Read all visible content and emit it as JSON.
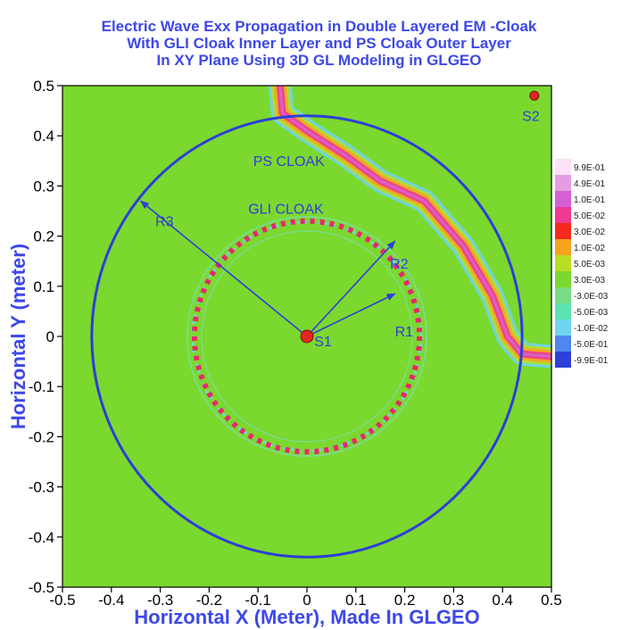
{
  "chart_data": {
    "type": "heatmap",
    "title_lines": [
      "Electric Wave Exx Propagation in Double Layered EM -Cloak",
      "With GLI Cloak Inner Layer and  PS Cloak Outer Layer",
      "In XY Plane Using 3D GL Modeling in GLGEO"
    ],
    "xlabel": "Horizontal X (Meter), Made In GLGEO",
    "ylabel": "Horizontal Y (meter)",
    "xlim": [
      -0.5,
      0.5
    ],
    "ylim": [
      -0.5,
      0.5
    ],
    "x_ticks": [
      -0.5,
      -0.4,
      -0.3,
      -0.2,
      -0.1,
      0,
      0.1,
      0.2,
      0.3,
      0.4,
      0.5
    ],
    "y_ticks": [
      -0.5,
      -0.4,
      -0.3,
      -0.2,
      -0.1,
      0,
      0.1,
      0.2,
      0.3,
      0.4,
      0.5
    ],
    "x_tick_labels": [
      "-0.5",
      "-0.4",
      "-0.3",
      "-0.2",
      "-0.1",
      "0",
      "0.1",
      "0.2",
      "0.3",
      "0.4",
      "0.5"
    ],
    "y_tick_labels": [
      "-0.5",
      "-0.4",
      "-0.3",
      "-0.2",
      "-0.1",
      "0",
      "0.1",
      "0.2",
      "0.3",
      "0.4",
      "0.5"
    ],
    "background_color": "#7bd82e",
    "circles": [
      {
        "label": "PS CLOAK",
        "cx": 0,
        "cy": 0,
        "r": 0.44,
        "color": "#2c3fd8",
        "label_x": -0.11,
        "label_y": 0.34
      },
      {
        "label": "GLI CLOAK",
        "cx": 0,
        "cy": 0,
        "r": 0.23,
        "color": "#e8286a",
        "label_x": -0.12,
        "label_y": 0.245
      }
    ],
    "arrows": [
      {
        "label": "R3",
        "from": [
          0,
          0
        ],
        "to": [
          -0.34,
          0.27
        ],
        "label_x": -0.31,
        "label_y": 0.22
      },
      {
        "label": "R2",
        "from": [
          0,
          0
        ],
        "to": [
          0.18,
          0.19
        ],
        "label_x": 0.17,
        "label_y": 0.135
      },
      {
        "label": "R1",
        "from": [
          0,
          0
        ],
        "to": [
          0.18,
          0.085
        ],
        "label_x": 0.18,
        "label_y": 0.0
      }
    ],
    "sources": [
      {
        "label": "S1",
        "x": 0,
        "y": 0,
        "label_x": 0.015,
        "label_y": -0.02
      },
      {
        "label": "S2",
        "x": 0.465,
        "y": 0.48,
        "label_x": 0.44,
        "label_y": 0.43
      }
    ],
    "legend": {
      "placement": "right",
      "entries": [
        {
          "label": "9.9E-01",
          "color": "#fbe2f5"
        },
        {
          "label": "4.9E-01",
          "color": "#e59ce3"
        },
        {
          "label": "1.0E-01",
          "color": "#d560d3"
        },
        {
          "label": "5.0E-02",
          "color": "#ee3a8f"
        },
        {
          "label": "3.0E-02",
          "color": "#f52a1c"
        },
        {
          "label": "1.0E-02",
          "color": "#f7a320"
        },
        {
          "label": "5.0E-03",
          "color": "#b8de24"
        },
        {
          "label": "3.0E-03",
          "color": "#7bd82e"
        },
        {
          "label": "-3.0E-03",
          "color": "#7adc86"
        },
        {
          "label": "-5.0E-03",
          "color": "#5ce3b2"
        },
        {
          "label": "-1.0E-02",
          "color": "#6fd4f0"
        },
        {
          "label": "-5.0E-01",
          "color": "#4f86ef"
        },
        {
          "label": "-9.9E-01",
          "color": "#2c3fd8"
        }
      ]
    }
  }
}
